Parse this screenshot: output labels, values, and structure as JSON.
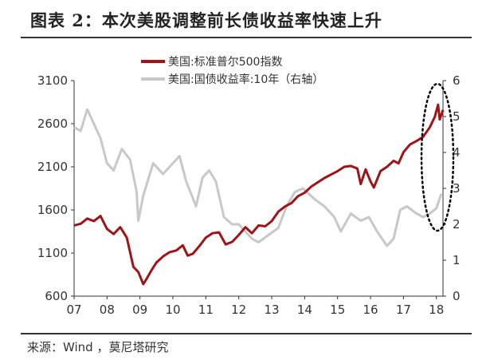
{
  "title": "图表 2：本次美股调整前长债收益率快速上升",
  "source": "来源：Wind ，莫尼塔研究",
  "colors": {
    "sp500": "#a01418",
    "yield": "#c8c8c8",
    "axis": "#333333"
  },
  "chart_data": {
    "type": "line",
    "title": "图表 2：本次美股调整前长债收益率快速上升",
    "x_ticks": [
      "07",
      "08",
      "09",
      "10",
      "11",
      "12",
      "13",
      "14",
      "15",
      "16",
      "17",
      "18"
    ],
    "x_range": [
      2007.0,
      2018.2
    ],
    "left_axis": {
      "ticks": [
        600,
        1100,
        1600,
        2100,
        2600,
        3100
      ],
      "range": [
        600,
        3100
      ]
    },
    "right_axis": {
      "ticks": [
        0,
        1,
        2,
        3,
        4,
        5,
        6
      ],
      "range": [
        0,
        6
      ]
    },
    "legend": {
      "placement": "top-center"
    },
    "grid": false,
    "annotation": "dotted ellipse around early-2018 data",
    "series": [
      {
        "name": "美国:标准普尔500指数",
        "axis": "left",
        "color": "#a01418",
        "points": [
          [
            2007.0,
            1420
          ],
          [
            2007.2,
            1440
          ],
          [
            2007.4,
            1500
          ],
          [
            2007.6,
            1470
          ],
          [
            2007.8,
            1530
          ],
          [
            2008.0,
            1380
          ],
          [
            2008.2,
            1320
          ],
          [
            2008.4,
            1400
          ],
          [
            2008.6,
            1280
          ],
          [
            2008.8,
            940
          ],
          [
            2008.95,
            880
          ],
          [
            2009.1,
            740
          ],
          [
            2009.2,
            800
          ],
          [
            2009.35,
            900
          ],
          [
            2009.5,
            990
          ],
          [
            2009.7,
            1060
          ],
          [
            2009.9,
            1110
          ],
          [
            2010.1,
            1130
          ],
          [
            2010.3,
            1190
          ],
          [
            2010.45,
            1070
          ],
          [
            2010.6,
            1090
          ],
          [
            2010.8,
            1180
          ],
          [
            2011.0,
            1280
          ],
          [
            2011.2,
            1330
          ],
          [
            2011.4,
            1340
          ],
          [
            2011.6,
            1200
          ],
          [
            2011.8,
            1230
          ],
          [
            2012.0,
            1310
          ],
          [
            2012.2,
            1400
          ],
          [
            2012.4,
            1330
          ],
          [
            2012.6,
            1420
          ],
          [
            2012.8,
            1410
          ],
          [
            2013.0,
            1470
          ],
          [
            2013.2,
            1580
          ],
          [
            2013.4,
            1640
          ],
          [
            2013.6,
            1680
          ],
          [
            2013.8,
            1760
          ],
          [
            2014.0,
            1800
          ],
          [
            2014.2,
            1870
          ],
          [
            2014.4,
            1920
          ],
          [
            2014.6,
            1970
          ],
          [
            2014.8,
            2010
          ],
          [
            2015.0,
            2050
          ],
          [
            2015.2,
            2100
          ],
          [
            2015.4,
            2110
          ],
          [
            2015.6,
            2080
          ],
          [
            2015.7,
            1900
          ],
          [
            2015.85,
            2070
          ],
          [
            2016.0,
            1930
          ],
          [
            2016.1,
            1860
          ],
          [
            2016.3,
            2050
          ],
          [
            2016.5,
            2100
          ],
          [
            2016.7,
            2170
          ],
          [
            2016.85,
            2140
          ],
          [
            2017.0,
            2270
          ],
          [
            2017.2,
            2360
          ],
          [
            2017.4,
            2400
          ],
          [
            2017.6,
            2450
          ],
          [
            2017.8,
            2560
          ],
          [
            2017.95,
            2680
          ],
          [
            2018.05,
            2820
          ],
          [
            2018.1,
            2650
          ],
          [
            2018.2,
            2760
          ]
        ]
      },
      {
        "name": "美国:国债收益率:10年（右轴）",
        "axis": "right",
        "color": "#c8c8c8",
        "points": [
          [
            2007.0,
            4.7
          ],
          [
            2007.2,
            4.6
          ],
          [
            2007.4,
            5.2
          ],
          [
            2007.55,
            4.9
          ],
          [
            2007.8,
            4.4
          ],
          [
            2008.0,
            3.7
          ],
          [
            2008.2,
            3.5
          ],
          [
            2008.45,
            4.1
          ],
          [
            2008.7,
            3.8
          ],
          [
            2008.9,
            2.9
          ],
          [
            2008.95,
            2.1
          ],
          [
            2009.1,
            2.8
          ],
          [
            2009.4,
            3.7
          ],
          [
            2009.7,
            3.4
          ],
          [
            2009.9,
            3.6
          ],
          [
            2010.2,
            3.9
          ],
          [
            2010.4,
            3.2
          ],
          [
            2010.7,
            2.5
          ],
          [
            2010.9,
            3.3
          ],
          [
            2011.1,
            3.5
          ],
          [
            2011.3,
            3.2
          ],
          [
            2011.55,
            2.2
          ],
          [
            2011.8,
            2.0
          ],
          [
            2012.0,
            2.0
          ],
          [
            2012.4,
            1.6
          ],
          [
            2012.6,
            1.5
          ],
          [
            2012.9,
            1.7
          ],
          [
            2013.2,
            1.9
          ],
          [
            2013.45,
            2.5
          ],
          [
            2013.7,
            2.9
          ],
          [
            2013.95,
            3.0
          ],
          [
            2014.3,
            2.7
          ],
          [
            2014.6,
            2.5
          ],
          [
            2014.9,
            2.2
          ],
          [
            2015.1,
            1.8
          ],
          [
            2015.4,
            2.3
          ],
          [
            2015.7,
            2.1
          ],
          [
            2015.95,
            2.2
          ],
          [
            2016.2,
            1.8
          ],
          [
            2016.5,
            1.4
          ],
          [
            2016.7,
            1.6
          ],
          [
            2016.9,
            2.4
          ],
          [
            2017.1,
            2.5
          ],
          [
            2017.4,
            2.3
          ],
          [
            2017.6,
            2.2
          ],
          [
            2017.8,
            2.3
          ],
          [
            2018.0,
            2.45
          ],
          [
            2018.15,
            2.85
          ]
        ]
      }
    ]
  }
}
